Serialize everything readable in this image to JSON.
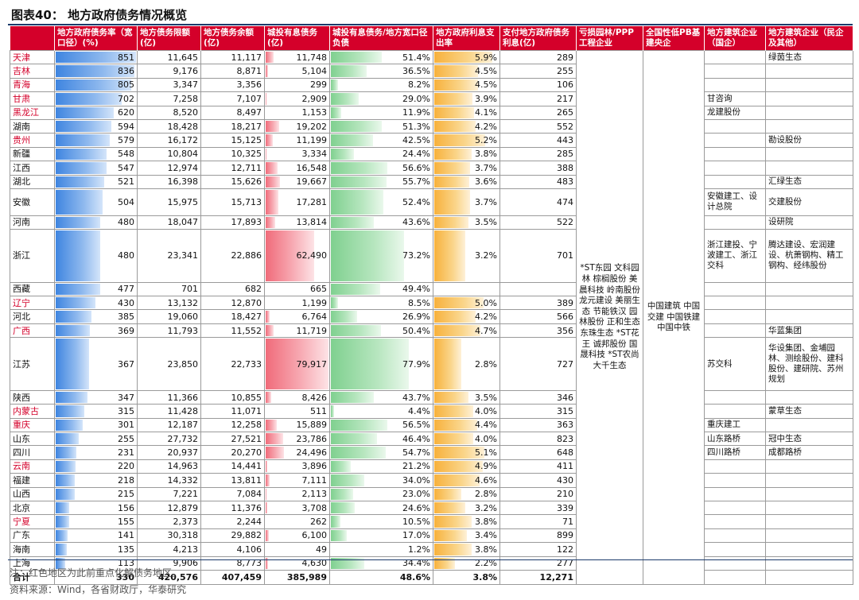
{
  "title": "图表40：  地方政府债务情况概览",
  "headers": [
    "地方政府债务率（宽口径）(%)",
    "地方债务限额(亿)",
    "地方债务余额(亿)",
    "城投有息债务(亿)",
    "城投有息债务/地方宽口径负债",
    "地方政府利息支出率",
    "支付地方政府债务利息(亿)",
    "亏损园林/PPP工程企业",
    "全国性低PB基建央企",
    "地方建筑企业（国企）",
    "地方建筑企业（民企及其他）"
  ],
  "rows": [
    {
      "region": "天津",
      "red": true,
      "rate": 851,
      "limit": "11,645",
      "balance": "11,117",
      "lgfv": "11,748",
      "lgfv_v": 11748,
      "ratio": "51.4%",
      "ratio_v": 51.4,
      "interest": "5.9%",
      "interest_v": 5.9,
      "pay": "289",
      "soe": "",
      "private": "绿茵生态",
      "h": 1
    },
    {
      "region": "吉林",
      "red": true,
      "rate": 836,
      "limit": "9,176",
      "balance": "8,871",
      "lgfv": "5,104",
      "lgfv_v": 5104,
      "ratio": "36.5%",
      "ratio_v": 36.5,
      "interest": "4.5%",
      "interest_v": 4.5,
      "pay": "255",
      "soe": "",
      "private": "",
      "h": 1
    },
    {
      "region": "青海",
      "red": true,
      "rate": 805,
      "limit": "3,347",
      "balance": "3,356",
      "lgfv": "299",
      "lgfv_v": 299,
      "ratio": "8.2%",
      "ratio_v": 8.2,
      "interest": "4.5%",
      "interest_v": 4.5,
      "pay": "106",
      "soe": "",
      "private": "",
      "h": 1
    },
    {
      "region": "甘肃",
      "red": true,
      "rate": 702,
      "limit": "7,258",
      "balance": "7,107",
      "lgfv": "2,909",
      "lgfv_v": 2909,
      "ratio": "29.0%",
      "ratio_v": 29.0,
      "interest": "3.9%",
      "interest_v": 3.9,
      "pay": "217",
      "soe": "甘咨询",
      "private": "",
      "h": 1
    },
    {
      "region": "黑龙江",
      "red": true,
      "rate": 620,
      "limit": "8,520",
      "balance": "8,497",
      "lgfv": "1,153",
      "lgfv_v": 1153,
      "ratio": "11.9%",
      "ratio_v": 11.9,
      "interest": "4.1%",
      "interest_v": 4.1,
      "pay": "265",
      "soe": "龙建股份",
      "private": "",
      "h": 1
    },
    {
      "region": "湖南",
      "red": false,
      "rate": 594,
      "limit": "18,428",
      "balance": "18,217",
      "lgfv": "19,202",
      "lgfv_v": 19202,
      "ratio": "51.3%",
      "ratio_v": 51.3,
      "interest": "4.2%",
      "interest_v": 4.2,
      "pay": "552",
      "soe": "",
      "private": "",
      "h": 1
    },
    {
      "region": "贵州",
      "red": true,
      "rate": 579,
      "limit": "16,172",
      "balance": "15,125",
      "lgfv": "11,199",
      "lgfv_v": 11199,
      "ratio": "42.5%",
      "ratio_v": 42.5,
      "interest": "5.2%",
      "interest_v": 5.2,
      "pay": "443",
      "soe": "",
      "private": "勘设股份",
      "h": 1
    },
    {
      "region": "新疆",
      "red": false,
      "rate": 548,
      "limit": "10,804",
      "balance": "10,325",
      "lgfv": "3,334",
      "lgfv_v": 3334,
      "ratio": "24.4%",
      "ratio_v": 24.4,
      "interest": "3.8%",
      "interest_v": 3.8,
      "pay": "285",
      "soe": "",
      "private": "",
      "h": 1
    },
    {
      "region": "江西",
      "red": false,
      "rate": 547,
      "limit": "12,974",
      "balance": "12,711",
      "lgfv": "16,548",
      "lgfv_v": 16548,
      "ratio": "56.6%",
      "ratio_v": 56.6,
      "interest": "3.7%",
      "interest_v": 3.7,
      "pay": "388",
      "soe": "",
      "private": "",
      "h": 1
    },
    {
      "region": "湖北",
      "red": false,
      "rate": 521,
      "limit": "16,398",
      "balance": "15,626",
      "lgfv": "19,667",
      "lgfv_v": 19667,
      "ratio": "55.7%",
      "ratio_v": 55.7,
      "interest": "3.6%",
      "interest_v": 3.6,
      "pay": "483",
      "soe": "",
      "private": "汇绿生态",
      "h": 1
    },
    {
      "region": "安徽",
      "red": false,
      "rate": 504,
      "limit": "15,975",
      "balance": "15,713",
      "lgfv": "17,281",
      "lgfv_v": 17281,
      "ratio": "52.4%",
      "ratio_v": 52.4,
      "interest": "3.7%",
      "interest_v": 3.7,
      "pay": "474",
      "soe": "安徽建工、设计总院",
      "private": "交建股份",
      "h": 2
    },
    {
      "region": "河南",
      "red": false,
      "rate": 480,
      "limit": "18,047",
      "balance": "17,893",
      "lgfv": "13,814",
      "lgfv_v": 13814,
      "ratio": "43.6%",
      "ratio_v": 43.6,
      "interest": "3.5%",
      "interest_v": 3.5,
      "pay": "522",
      "soe": "",
      "private": "设研院",
      "h": 1
    },
    {
      "region": "浙江",
      "red": false,
      "rate": 480,
      "limit": "23,341",
      "balance": "22,886",
      "lgfv": "62,490",
      "lgfv_v": 62490,
      "ratio": "73.2%",
      "ratio_v": 73.2,
      "interest": "3.2%",
      "interest_v": 3.2,
      "pay": "701",
      "soe": "浙江建投、宁波建工、浙江交科",
      "private": "腾达建设、宏润建设、杭萧钢构、精工钢构、经纬股份",
      "h": 4
    },
    {
      "region": "西藏",
      "red": false,
      "rate": 477,
      "limit": "701",
      "balance": "682",
      "lgfv": "665",
      "lgfv_v": 665,
      "ratio": "49.4%",
      "ratio_v": 49.4,
      "interest": "",
      "interest_v": 0,
      "pay": "",
      "soe": "",
      "private": "",
      "h": 1
    },
    {
      "region": "辽宁",
      "red": true,
      "rate": 430,
      "limit": "13,132",
      "balance": "12,870",
      "lgfv": "1,199",
      "lgfv_v": 1199,
      "ratio": "8.5%",
      "ratio_v": 8.5,
      "interest": "5.0%",
      "interest_v": 5.0,
      "pay": "389",
      "soe": "",
      "private": "",
      "h": 1
    },
    {
      "region": "河北",
      "red": false,
      "rate": 385,
      "limit": "19,060",
      "balance": "18,427",
      "lgfv": "6,764",
      "lgfv_v": 6764,
      "ratio": "26.9%",
      "ratio_v": 26.9,
      "interest": "4.2%",
      "interest_v": 4.2,
      "pay": "566",
      "soe": "",
      "private": "",
      "h": 1
    },
    {
      "region": "广西",
      "red": true,
      "rate": 369,
      "limit": "11,793",
      "balance": "11,552",
      "lgfv": "11,719",
      "lgfv_v": 11719,
      "ratio": "50.4%",
      "ratio_v": 50.4,
      "interest": "4.7%",
      "interest_v": 4.7,
      "pay": "356",
      "soe": "",
      "private": "华蓝集团",
      "h": 1
    },
    {
      "region": "江苏",
      "red": false,
      "rate": 367,
      "limit": "23,850",
      "balance": "22,733",
      "lgfv": "79,917",
      "lgfv_v": 79917,
      "ratio": "77.9%",
      "ratio_v": 77.9,
      "interest": "2.8%",
      "interest_v": 2.8,
      "pay": "727",
      "soe": "苏交科",
      "private": "华设集团、金埔园林、测绘股份、建科股份、建研院、苏州规划",
      "h": 4
    },
    {
      "region": "陕西",
      "red": false,
      "rate": 347,
      "limit": "11,366",
      "balance": "10,855",
      "lgfv": "8,426",
      "lgfv_v": 8426,
      "ratio": "43.7%",
      "ratio_v": 43.7,
      "interest": "3.5%",
      "interest_v": 3.5,
      "pay": "346",
      "soe": "",
      "private": "",
      "h": 1
    },
    {
      "region": "内蒙古",
      "red": true,
      "rate": 315,
      "limit": "11,428",
      "balance": "11,071",
      "lgfv": "511",
      "lgfv_v": 511,
      "ratio": "4.4%",
      "ratio_v": 4.4,
      "interest": "4.0%",
      "interest_v": 4.0,
      "pay": "315",
      "soe": "",
      "private": "蒙草生态",
      "h": 1
    },
    {
      "region": "重庆",
      "red": true,
      "rate": 301,
      "limit": "12,187",
      "balance": "12,258",
      "lgfv": "15,889",
      "lgfv_v": 15889,
      "ratio": "56.5%",
      "ratio_v": 56.5,
      "interest": "4.4%",
      "interest_v": 4.4,
      "pay": "363",
      "soe": "重庆建工",
      "private": "",
      "h": 1
    },
    {
      "region": "山东",
      "red": false,
      "rate": 255,
      "limit": "27,732",
      "balance": "27,521",
      "lgfv": "23,786",
      "lgfv_v": 23786,
      "ratio": "46.4%",
      "ratio_v": 46.4,
      "interest": "4.0%",
      "interest_v": 4.0,
      "pay": "823",
      "soe": "山东路桥",
      "private": "冠中生态",
      "h": 1
    },
    {
      "region": "四川",
      "red": false,
      "rate": 231,
      "limit": "20,937",
      "balance": "20,270",
      "lgfv": "24,496",
      "lgfv_v": 24496,
      "ratio": "54.7%",
      "ratio_v": 54.7,
      "interest": "5.1%",
      "interest_v": 5.1,
      "pay": "648",
      "soe": "四川路桥",
      "private": "成都路桥",
      "h": 1
    },
    {
      "region": "云南",
      "red": true,
      "rate": 220,
      "limit": "14,963",
      "balance": "14,441",
      "lgfv": "3,896",
      "lgfv_v": 3896,
      "ratio": "21.2%",
      "ratio_v": 21.2,
      "interest": "4.9%",
      "interest_v": 4.9,
      "pay": "411",
      "soe": "",
      "private": "",
      "h": 1
    },
    {
      "region": "福建",
      "red": false,
      "rate": 218,
      "limit": "14,332",
      "balance": "13,811",
      "lgfv": "7,111",
      "lgfv_v": 7111,
      "ratio": "34.0%",
      "ratio_v": 34.0,
      "interest": "4.6%",
      "interest_v": 4.6,
      "pay": "430",
      "soe": "",
      "private": "",
      "h": 1
    },
    {
      "region": "山西",
      "red": false,
      "rate": 215,
      "limit": "7,221",
      "balance": "7,084",
      "lgfv": "2,113",
      "lgfv_v": 2113,
      "ratio": "23.0%",
      "ratio_v": 23.0,
      "interest": "2.8%",
      "interest_v": 2.8,
      "pay": "210",
      "soe": "",
      "private": "",
      "h": 1
    },
    {
      "region": "北京",
      "red": false,
      "rate": 156,
      "limit": "12,879",
      "balance": "11,376",
      "lgfv": "3,708",
      "lgfv_v": 3708,
      "ratio": "24.6%",
      "ratio_v": 24.6,
      "interest": "3.2%",
      "interest_v": 3.2,
      "pay": "339",
      "soe": "",
      "private": "",
      "h": 1
    },
    {
      "region": "宁夏",
      "red": true,
      "rate": 155,
      "limit": "2,373",
      "balance": "2,244",
      "lgfv": "262",
      "lgfv_v": 262,
      "ratio": "10.5%",
      "ratio_v": 10.5,
      "interest": "3.8%",
      "interest_v": 3.8,
      "pay": "71",
      "soe": "",
      "private": "",
      "h": 1
    },
    {
      "region": "广东",
      "red": false,
      "rate": 141,
      "limit": "30,318",
      "balance": "29,882",
      "lgfv": "6,100",
      "lgfv_v": 6100,
      "ratio": "17.0%",
      "ratio_v": 17.0,
      "interest": "3.4%",
      "interest_v": 3.4,
      "pay": "899",
      "soe": "",
      "private": "",
      "h": 1
    },
    {
      "region": "海南",
      "red": false,
      "rate": 135,
      "limit": "4,213",
      "balance": "4,106",
      "lgfv": "49",
      "lgfv_v": 49,
      "ratio": "1.2%",
      "ratio_v": 1.2,
      "interest": "3.8%",
      "interest_v": 3.8,
      "pay": "122",
      "soe": "",
      "private": "",
      "h": 1
    },
    {
      "region": "上海",
      "red": false,
      "rate": 113,
      "limit": "9,906",
      "balance": "8,773",
      "lgfv": "4,630",
      "lgfv_v": 4630,
      "ratio": "34.4%",
      "ratio_v": 34.4,
      "interest": "2.2%",
      "interest_v": 2.2,
      "pay": "277",
      "soe": "",
      "private": "",
      "h": 1
    }
  ],
  "ppp_companies": "*ST东园 文科园林 棕榈股份 美晨科技 岭南股份 龙元建设 美丽生态 节能铁汉 园林股份 正和生态 东珠生态 *ST花王 诚邦股份 国晟科技 *ST农尚 大千生态",
  "central_soe": "中国建筑 中国交建 中国铁建 中国中铁",
  "total": {
    "label": "合计",
    "rate": "330",
    "limit": "420,576",
    "balance": "407,459",
    "lgfv": "385,989",
    "ratio": "48.6%",
    "interest": "3.8%",
    "pay": "12,271"
  },
  "notes": {
    "note": "注：红色地区为此前重点化解债务地区。",
    "source": "资料来源：Wind，各省财政厅，华泰研究"
  },
  "colors": {
    "header_bg": "#d4002a",
    "highlight_text": "#d4002a",
    "bar_rate": "#3f85e0",
    "bar_lgfv": "#f06b7a",
    "bar_ratio": "#7fd08f",
    "bar_interest": "#f7b13c"
  },
  "scales": {
    "rate_max": 851,
    "lgfv_max": 79917,
    "ratio_max": 77.9,
    "interest_max": 5.9
  }
}
